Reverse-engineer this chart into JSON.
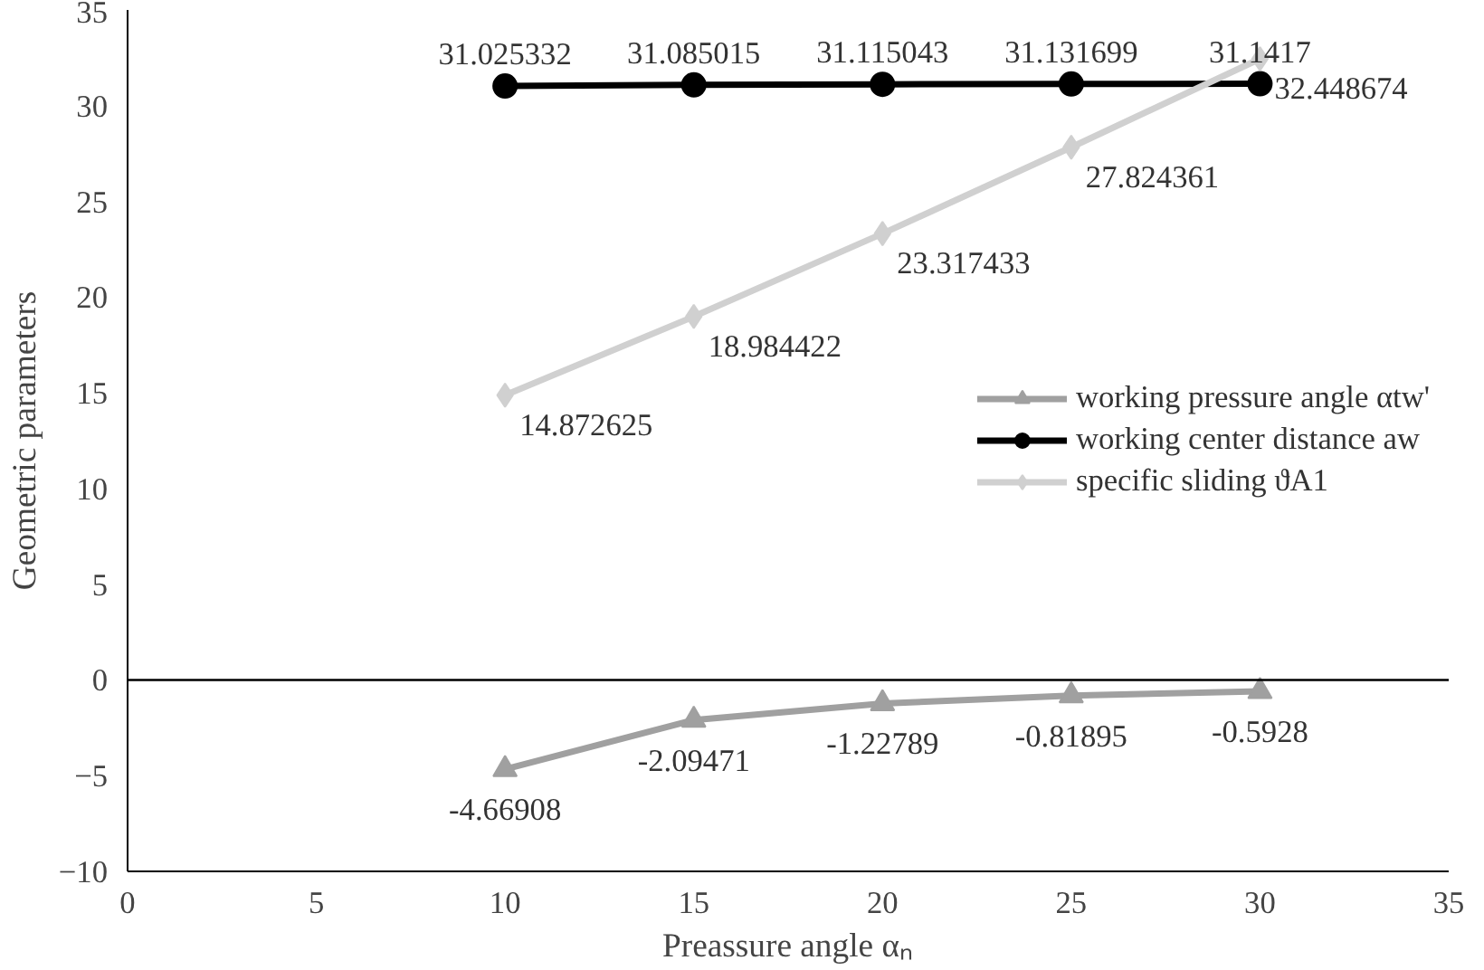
{
  "chart_data": {
    "type": "line",
    "xlabel": "Preassure angle αₙ",
    "ylabel": "Geometric parameters",
    "x": [
      10,
      15,
      20,
      25,
      30
    ],
    "series": [
      {
        "name": "working pressure angle αtw'",
        "color": "#a0a0a0",
        "marker": "triangle",
        "values": [
          -4.66908,
          -2.09471,
          -1.22789,
          -0.81895,
          -0.5928
        ]
      },
      {
        "name": "working center distance aw",
        "color": "#000000",
        "marker": "circle",
        "values": [
          31.025332,
          31.085015,
          31.115043,
          31.131699,
          31.1417
        ]
      },
      {
        "name": "specific sliding ϑA1",
        "color": "#d0d0d0",
        "marker": "diamond",
        "values": [
          14.872625,
          18.984422,
          23.317433,
          27.824361,
          32.448674
        ]
      }
    ],
    "xlim": [
      0,
      35
    ],
    "xticks": [
      0,
      5,
      10,
      15,
      20,
      25,
      30,
      35
    ],
    "ylim": [
      -10,
      35
    ],
    "yticks": [
      -10,
      -5,
      0,
      5,
      10,
      15,
      20,
      25,
      30,
      35
    ],
    "ref_lines": [
      {
        "axis": "y",
        "value": 0,
        "color": "#000000"
      }
    ],
    "data_labels": true,
    "grid": false,
    "legend": "right",
    "line_style": "solid"
  }
}
